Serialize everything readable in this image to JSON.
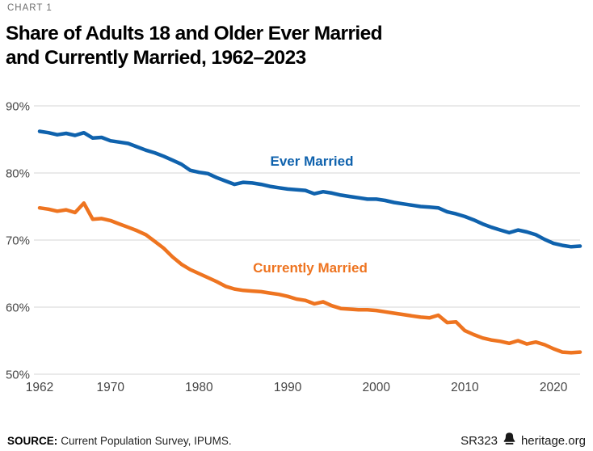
{
  "header": {
    "kicker": "CHART 1",
    "title_line1": "Share of Adults 18 and Older Ever Married",
    "title_line2": "and Currently Married, 1962–2023"
  },
  "colors": {
    "blue": "#0F62AD",
    "orange": "#EE7420",
    "grid": "#D6D6D6",
    "axis_text": "#474747",
    "kicker_text": "#6F6F6F"
  },
  "chart_data": {
    "type": "line",
    "title": "Share of Adults 18 and Older Ever Married and Currently Married, 1962–2023",
    "xlabel": "",
    "ylabel": "",
    "xlim": [
      1962,
      2023
    ],
    "ylim": [
      50,
      90
    ],
    "grid": true,
    "legend_position": "inline-annotations",
    "x_ticks": [
      1962,
      1970,
      1980,
      1990,
      2000,
      2010,
      2020
    ],
    "x_tick_labels": [
      "1962",
      "1970",
      "1980",
      "1990",
      "2000",
      "2010",
      "2020"
    ],
    "y_ticks": [
      90,
      80,
      70,
      60,
      50
    ],
    "y_tick_labels": [
      "90%",
      "80%",
      "70%",
      "60%",
      "50%"
    ],
    "x": [
      1962,
      1963,
      1964,
      1965,
      1966,
      1967,
      1968,
      1969,
      1970,
      1971,
      1972,
      1973,
      1974,
      1975,
      1976,
      1977,
      1978,
      1979,
      1980,
      1981,
      1982,
      1983,
      1984,
      1985,
      1986,
      1987,
      1988,
      1989,
      1990,
      1991,
      1992,
      1993,
      1994,
      1995,
      1996,
      1997,
      1998,
      1999,
      2000,
      2001,
      2002,
      2003,
      2004,
      2005,
      2006,
      2007,
      2008,
      2009,
      2010,
      2011,
      2012,
      2013,
      2014,
      2015,
      2016,
      2017,
      2018,
      2019,
      2020,
      2021,
      2022,
      2023
    ],
    "series": [
      {
        "name": "Ever Married",
        "color": "#0F62AD",
        "values": [
          86.2,
          86.0,
          85.7,
          85.9,
          85.6,
          86.0,
          85.2,
          85.3,
          84.8,
          84.6,
          84.4,
          83.9,
          83.4,
          83.0,
          82.5,
          81.9,
          81.3,
          80.4,
          80.1,
          79.9,
          79.3,
          78.8,
          78.3,
          78.6,
          78.5,
          78.3,
          78.0,
          77.8,
          77.6,
          77.5,
          77.4,
          76.9,
          77.2,
          77.0,
          76.7,
          76.5,
          76.3,
          76.1,
          76.1,
          75.9,
          75.6,
          75.4,
          75.2,
          75.0,
          74.9,
          74.8,
          74.2,
          73.9,
          73.5,
          73.0,
          72.4,
          71.9,
          71.5,
          71.1,
          71.5,
          71.2,
          70.8,
          70.1,
          69.5,
          69.2,
          69.0,
          69.1
        ]
      },
      {
        "name": "Currently Married",
        "color": "#EE7420",
        "values": [
          74.8,
          74.6,
          74.3,
          74.5,
          74.1,
          75.5,
          73.1,
          73.2,
          72.9,
          72.4,
          71.9,
          71.4,
          70.8,
          69.8,
          68.8,
          67.5,
          66.4,
          65.6,
          65.0,
          64.4,
          63.8,
          63.1,
          62.7,
          62.5,
          62.4,
          62.3,
          62.1,
          61.9,
          61.6,
          61.2,
          61.0,
          60.5,
          60.8,
          60.2,
          59.8,
          59.7,
          59.6,
          59.6,
          59.5,
          59.3,
          59.1,
          58.9,
          58.7,
          58.5,
          58.4,
          58.8,
          57.7,
          57.8,
          56.5,
          55.9,
          55.4,
          55.1,
          54.9,
          54.6,
          55.0,
          54.5,
          54.8,
          54.4,
          53.8,
          53.3,
          53.2,
          53.3
        ]
      }
    ]
  },
  "footer": {
    "source_label": "SOURCE:",
    "source_text": "Current Population Survey, IPUMS.",
    "report_id": "SR323",
    "site": "heritage.org",
    "bell_icon": "heritage-bell-icon"
  }
}
